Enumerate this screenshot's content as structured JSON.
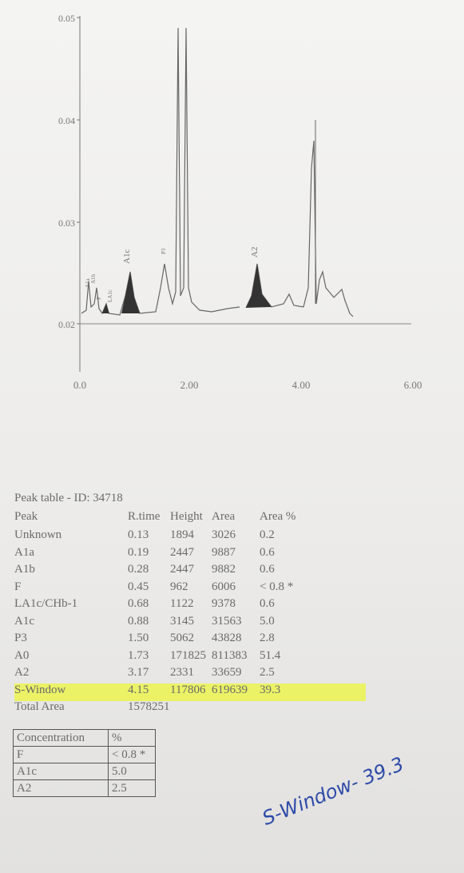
{
  "chromatogram": {
    "y_tick_labels": [
      "0.05",
      "0.04",
      "0.03",
      "0.02"
    ],
    "x_tick_labels": [
      "0.0",
      "2.00",
      "4.00",
      "6.00"
    ],
    "peak_labels": [
      "A1a",
      "A1b",
      "F",
      "LA1c",
      "A1c",
      "P3",
      "A2"
    ]
  },
  "peak_table": {
    "title": "Peak table - ID: 34718",
    "headers": [
      "Peak",
      "R.time",
      "Height",
      "Area",
      "Area %"
    ],
    "rows": [
      [
        "Unknown",
        "0.13",
        "1894",
        "3026",
        "0.2"
      ],
      [
        "A1a",
        "0.19",
        "2447",
        "9887",
        "0.6"
      ],
      [
        "A1b",
        "0.28",
        "2447",
        "9882",
        "0.6"
      ],
      [
        "F",
        "0.45",
        "962",
        "6006",
        "< 0.8 *"
      ],
      [
        "LA1c/CHb-1",
        "0.68",
        "1122",
        "9378",
        "0.6"
      ],
      [
        "A1c",
        "0.88",
        "3145",
        "31563",
        "5.0"
      ],
      [
        "P3",
        "1.50",
        "5062",
        "43828",
        "2.8"
      ],
      [
        "A0",
        "1.73",
        "171825",
        "811383",
        "51.4"
      ],
      [
        "A2",
        "3.17",
        "2331",
        "33659",
        "2.5"
      ],
      [
        "S-Window",
        "4.15",
        "117806",
        "619639",
        "39.3"
      ]
    ],
    "total": [
      "Total Area",
      "1578251"
    ]
  },
  "concentration_table": {
    "headers": [
      "Concentration",
      "%"
    ],
    "rows": [
      [
        "F",
        "< 0.8 *"
      ],
      [
        "A1c",
        "5.0"
      ],
      [
        "A2",
        "2.5"
      ]
    ]
  },
  "handwritten_note": "S-Window- 39.3"
}
